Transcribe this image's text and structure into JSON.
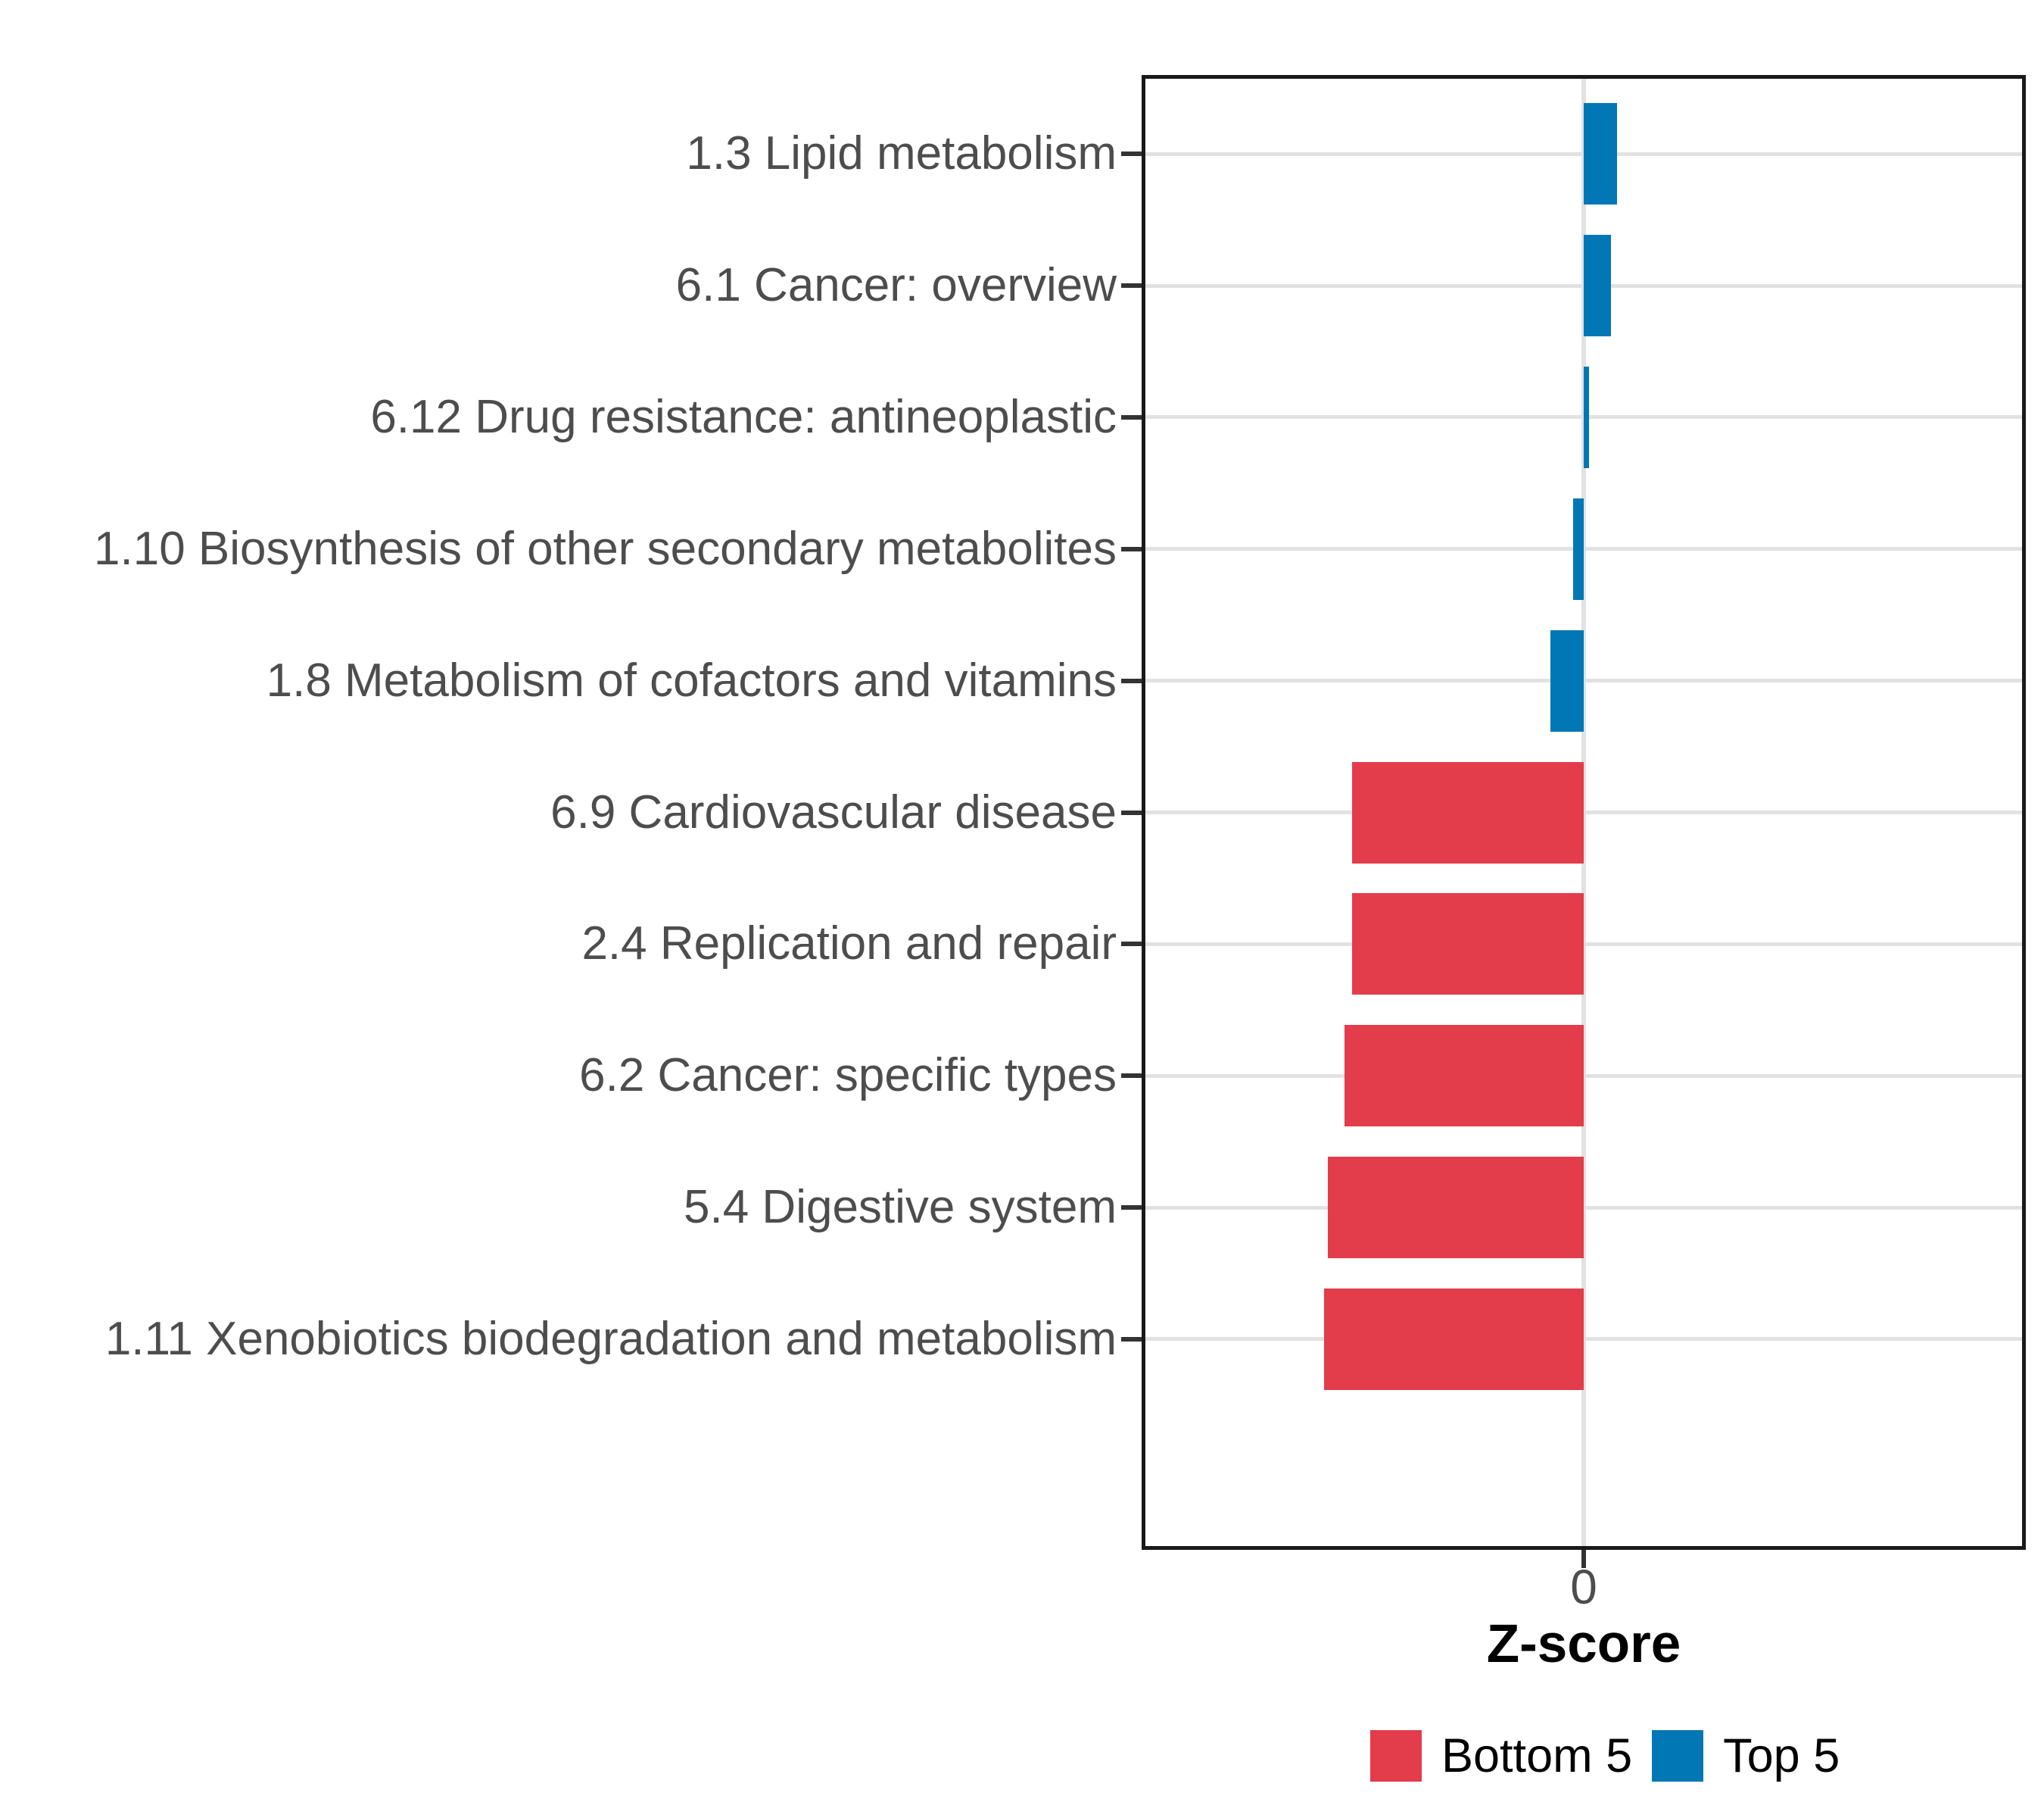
{
  "figure": {
    "background": "#ffffff"
  },
  "chart_data": {
    "type": "bar",
    "orientation": "horizontal",
    "title": "",
    "xlabel": "Z-score",
    "ylabel": "",
    "grid": "major",
    "legend_position": "bottom",
    "x_axis": {
      "min": -3.44,
      "max": 3.44,
      "ticks": [
        0
      ],
      "tick_labels": [
        "0"
      ]
    },
    "categories": [
      "1.3 Lipid metabolism",
      "6.1 Cancer: overview",
      "6.12 Drug resistance: antineoplastic",
      "1.10 Biosynthesis of other secondary metabolites",
      "1.8 Metabolism of cofactors and vitamins",
      "6.9 Cardiovascular disease",
      "2.4 Replication and repair",
      "6.2 Cancer: specific types",
      "5.4 Digestive system",
      "1.11 Xenobiotics biodegradation and metabolism"
    ],
    "values": [
      0.26,
      0.21,
      0.04,
      -0.08,
      -0.26,
      -1.8,
      -1.8,
      -1.86,
      -1.99,
      -2.02
    ],
    "groups": [
      "Top 5",
      "Top 5",
      "Top 5",
      "Top 5",
      "Top 5",
      "Bottom 5",
      "Bottom 5",
      "Bottom 5",
      "Bottom 5",
      "Bottom 5"
    ],
    "colors": {
      "Top 5": "#0277b5",
      "Bottom 5": "#e33c4b"
    },
    "legend": [
      {
        "label": "Bottom 5",
        "color": "#e33c4b"
      },
      {
        "label": "Top 5",
        "color": "#0277b5"
      }
    ],
    "style": {
      "gridline_color": "#e2e2e2",
      "axis_text_color": "#4d4d4d",
      "tick_color": "#333333",
      "panel_border_color": "#1a1a1a"
    }
  }
}
